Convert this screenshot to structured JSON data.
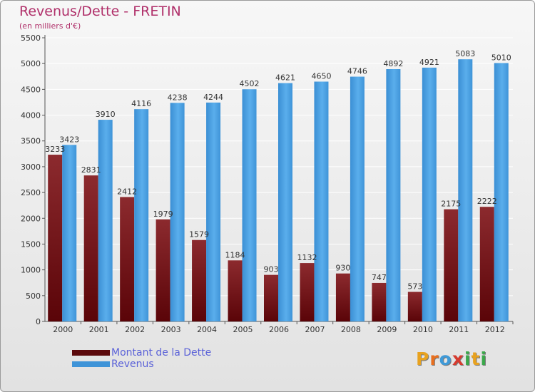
{
  "header": {
    "title": "Revenus/Dette - FRETIN",
    "subtitle": "(en milliers d'€)"
  },
  "colors": {
    "dette": "#7a1a1e",
    "revenus": "#4da3e3",
    "title": "#b0306a",
    "legend_text": "#5b62d8"
  },
  "legend": {
    "items": [
      {
        "label": "Montant de la Dette",
        "color": "#5c0a0c"
      },
      {
        "label": "Revenus",
        "color": "#3f94d8"
      }
    ]
  },
  "brand": {
    "letters": [
      "P",
      "r",
      "o",
      "x",
      "i",
      "t",
      "i"
    ],
    "colors": [
      "#e8a21f",
      "#e86f1f",
      "#3f9ad8",
      "#d63a2e",
      "#3aa84a",
      "#e8a21f",
      "#3aa84a"
    ]
  },
  "chart_data": {
    "type": "bar",
    "title": "Revenus/Dette - FRETIN",
    "subtitle": "(en milliers d'€)",
    "categories": [
      "2000",
      "2001",
      "2002",
      "2003",
      "2004",
      "2005",
      "2006",
      "2007",
      "2008",
      "2009",
      "2010",
      "2011",
      "2012"
    ],
    "series": [
      {
        "name": "Montant de la Dette",
        "values": [
          3233,
          2831,
          2412,
          1979,
          1579,
          1184,
          903,
          1132,
          930,
          747,
          573,
          2175,
          2222
        ],
        "labels": [
          "3233",
          "2831",
          "2412",
          "1979",
          "1579",
          "1184",
          "903",
          "1132",
          "930",
          "747",
          "573",
          "2175",
          "2222"
        ]
      },
      {
        "name": "Revenus",
        "values": [
          3423,
          3910,
          4116,
          4238,
          4244,
          4502,
          4621,
          4650,
          4746,
          4892,
          4921,
          5083,
          5010
        ],
        "labels": [
          "3423",
          "3910",
          "4116",
          "4238",
          "4244",
          "4502",
          "4621",
          "4650",
          "4746",
          "4892",
          "4921",
          "5083",
          "5010"
        ]
      }
    ],
    "y_ticks": [
      "0",
      "500",
      "1000",
      "1500",
      "2000",
      "2500",
      "3000",
      "3500",
      "4000",
      "4500",
      "5000",
      "5500"
    ],
    "ylim": [
      0,
      5500
    ],
    "grid": true,
    "legend_position": "bottom-left"
  }
}
